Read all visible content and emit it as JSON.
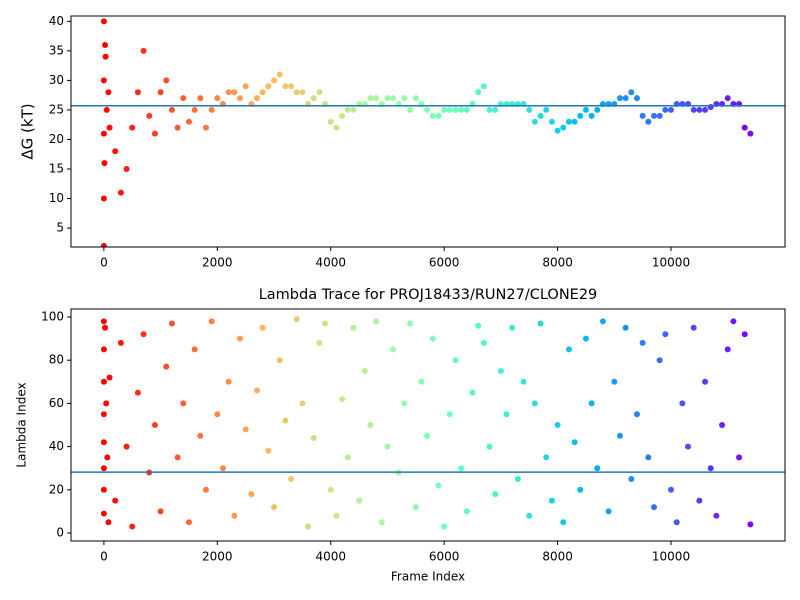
{
  "chart_data": [
    {
      "type": "scatter",
      "ylabel": "ΔG (kT)",
      "xlim": [
        -580,
        12010
      ],
      "ylim": [
        1.8,
        40.9
      ],
      "xticks": [
        0,
        2000,
        4000,
        6000,
        8000,
        10000
      ],
      "yticks": [
        5,
        10,
        15,
        20,
        25,
        30,
        35,
        40
      ],
      "colormap": "rainbow_r",
      "hline": 25.7,
      "hline_color": "#1f77b4",
      "x": [
        0,
        0,
        0,
        0,
        0,
        10,
        20,
        30,
        50,
        80,
        100,
        200,
        300,
        400,
        500,
        600,
        700,
        800,
        900,
        1000,
        1100,
        1200,
        1300,
        1400,
        1500,
        1600,
        1700,
        1800,
        1900,
        2000,
        2100,
        2200,
        2300,
        2400,
        2500,
        2600,
        2700,
        2800,
        2900,
        3000,
        3100,
        3200,
        3300,
        3400,
        3500,
        3600,
        3700,
        3800,
        3900,
        4000,
        4100,
        4200,
        4300,
        4400,
        4500,
        4600,
        4700,
        4800,
        4900,
        5000,
        5100,
        5200,
        5300,
        5400,
        5500,
        5600,
        5700,
        5800,
        5900,
        6000,
        6100,
        6200,
        6300,
        6400,
        6500,
        6600,
        6700,
        6800,
        6900,
        7000,
        7100,
        7200,
        7300,
        7400,
        7500,
        7600,
        7700,
        7800,
        7900,
        8000,
        8100,
        8200,
        8300,
        8400,
        8500,
        8600,
        8700,
        8800,
        8900,
        9000,
        9100,
        9200,
        9300,
        9400,
        9500,
        9600,
        9700,
        9800,
        9900,
        10000,
        10100,
        10200,
        10300,
        10400,
        10500,
        10600,
        10700,
        10800,
        10900,
        11000,
        11100,
        11200,
        11300,
        11400
      ],
      "values": [
        40,
        2,
        10,
        30,
        21,
        16,
        36,
        34,
        25,
        28,
        22,
        18,
        11,
        15,
        22,
        28,
        35,
        24,
        21,
        28,
        30,
        25,
        22,
        27,
        23,
        25,
        27,
        22,
        25,
        27,
        26,
        28,
        28,
        27,
        29,
        26,
        27,
        28,
        29,
        30,
        31,
        29,
        29,
        28,
        28,
        26,
        27,
        28,
        26,
        23,
        22,
        24,
        25,
        25,
        26,
        26,
        27,
        27,
        26,
        27,
        27,
        26,
        27,
        25,
        27,
        26,
        25,
        24,
        24,
        25,
        25,
        25,
        25,
        25,
        26,
        28,
        29,
        25,
        25,
        26,
        26,
        26,
        26,
        26,
        25,
        23,
        24,
        25,
        23,
        21.5,
        22,
        23,
        23,
        24,
        25,
        24,
        25,
        26,
        26,
        26,
        27,
        27,
        28,
        27,
        24,
        23,
        24,
        24,
        25,
        25,
        26,
        26,
        26,
        25,
        25,
        25,
        25.5,
        26,
        26,
        27,
        26,
        26,
        22,
        21
      ]
    },
    {
      "type": "scatter",
      "title": "Lambda Trace for PROJ18433/RUN27/CLONE29",
      "xlabel": "Frame Index",
      "ylabel": "Lambda Index",
      "xlim": [
        -580,
        12010
      ],
      "ylim": [
        -3.7,
        103.7
      ],
      "xticks": [
        0,
        2000,
        4000,
        6000,
        8000,
        10000
      ],
      "yticks": [
        0,
        20,
        40,
        60,
        80,
        100
      ],
      "colormap": "rainbow_r",
      "hline": 28.2,
      "hline_color": "#1f77b4",
      "x": [
        0,
        0,
        0,
        0,
        0,
        0,
        0,
        0,
        20,
        40,
        60,
        80,
        100,
        200,
        300,
        400,
        500,
        600,
        700,
        800,
        900,
        1000,
        1100,
        1200,
        1300,
        1400,
        1500,
        1600,
        1700,
        1800,
        1900,
        2000,
        2100,
        2200,
        2300,
        2400,
        2500,
        2600,
        2700,
        2800,
        2900,
        3000,
        3100,
        3200,
        3300,
        3400,
        3500,
        3600,
        3700,
        3800,
        3900,
        4000,
        4100,
        4200,
        4300,
        4400,
        4500,
        4600,
        4700,
        4800,
        4900,
        5000,
        5100,
        5200,
        5300,
        5400,
        5500,
        5600,
        5700,
        5800,
        5900,
        6000,
        6100,
        6200,
        6300,
        6400,
        6500,
        6600,
        6700,
        6800,
        6900,
        7000,
        7100,
        7200,
        7300,
        7400,
        7500,
        7600,
        7700,
        7800,
        7900,
        8000,
        8100,
        8200,
        8300,
        8400,
        8500,
        8600,
        8700,
        8800,
        8900,
        9000,
        9100,
        9200,
        9300,
        9400,
        9500,
        9600,
        9700,
        9800,
        9900,
        10000,
        10100,
        10200,
        10300,
        10400,
        10500,
        10600,
        10700,
        10800,
        10900,
        11000,
        11100,
        11200,
        11300,
        11400
      ],
      "values": [
        98,
        85,
        70,
        55,
        42,
        30,
        20,
        9,
        95,
        60,
        35,
        5,
        72,
        15,
        88,
        40,
        3,
        65,
        92,
        28,
        50,
        10,
        77,
        97,
        35,
        60,
        5,
        85,
        45,
        20,
        98,
        55,
        30,
        70,
        8,
        90,
        48,
        18,
        66,
        95,
        38,
        12,
        80,
        52,
        25,
        99,
        60,
        3,
        44,
        88,
        97,
        20,
        8,
        62,
        35,
        95,
        15,
        75,
        50,
        98,
        5,
        40,
        85,
        28,
        60,
        97,
        12,
        70,
        45,
        90,
        22,
        3,
        55,
        80,
        30,
        10,
        65,
        96,
        88,
        40,
        18,
        75,
        55,
        95,
        25,
        70,
        8,
        60,
        97,
        35,
        15,
        50,
        5,
        85,
        42,
        20,
        90,
        60,
        30,
        98,
        10,
        70,
        45,
        95,
        25,
        55,
        88,
        35,
        12,
        80,
        92,
        20,
        5,
        60,
        40,
        95,
        15,
        70,
        30,
        8,
        50,
        85,
        98,
        35,
        92,
        4
      ]
    }
  ]
}
